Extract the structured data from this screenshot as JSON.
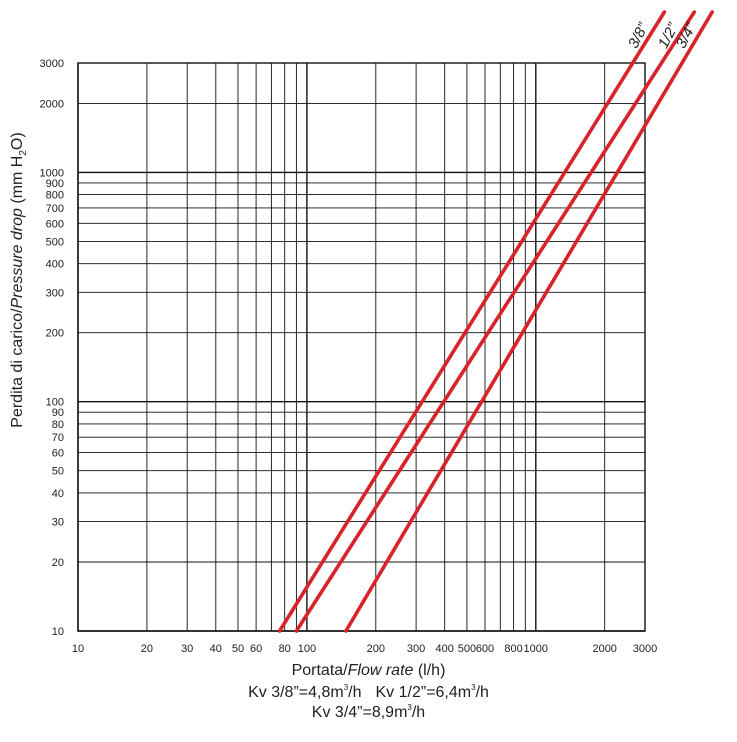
{
  "chart_data": {
    "type": "line",
    "x_scale": "log",
    "y_scale": "log",
    "xlim": [
      10,
      3000
    ],
    "ylim": [
      10,
      3000
    ],
    "x_ticks": [
      10,
      20,
      30,
      40,
      50,
      60,
      80,
      100,
      200,
      300,
      400,
      500,
      600,
      800,
      1000,
      2000,
      3000
    ],
    "y_ticks": [
      10,
      20,
      30,
      40,
      50,
      60,
      70,
      80,
      90,
      100,
      200,
      300,
      400,
      500,
      600,
      700,
      800,
      900,
      1000,
      2000,
      3000
    ],
    "grid": true,
    "line_color": "#d8232a",
    "xlabel": {
      "plain": "Portata/",
      "italic": "Flow rate",
      "unit": " (l/h)"
    },
    "ylabel": {
      "plain": "Perdita di carico/",
      "italic": "Pressure drop",
      "unit_before": " (mm H",
      "unit_sub": "2",
      "unit_after": "O)"
    },
    "series": [
      {
        "name": "3/8”",
        "kv": 4.8,
        "points": [
          [
            76,
            10
          ],
          [
            2650,
            3000
          ]
        ]
      },
      {
        "name": "1/2”",
        "kv": 6.4,
        "points": [
          [
            90,
            10
          ],
          [
            2900,
            2200
          ]
        ]
      },
      {
        "name": "3/4”",
        "kv": 8.9,
        "points": [
          [
            148,
            10
          ],
          [
            3000,
            1600
          ]
        ]
      }
    ]
  },
  "footnote": {
    "kv_38_prefix": "Kv 3/8”=4,8m",
    "kv_12_prefix": "Kv 1/2”=6,4m",
    "kv_34_prefix": "Kv 3/4”=8,9m",
    "cube": "3",
    "per_hour": "/h"
  }
}
